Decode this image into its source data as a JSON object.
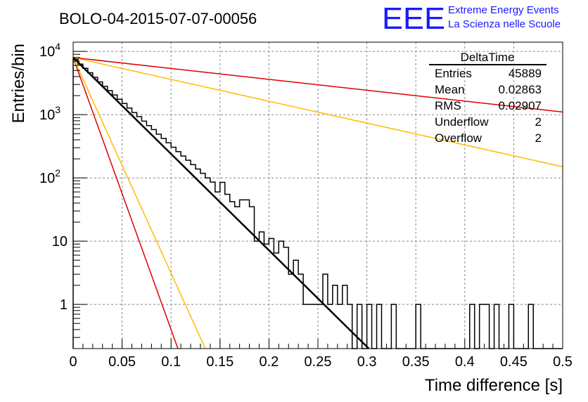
{
  "header": {
    "title": "BOLO-04-2015-07-07-00056",
    "logo_text": "EEE",
    "logo_line1": "Extreme Energy Events",
    "logo_line2": "La Scienza nelle Scuole",
    "logo_color": "#1a1aff"
  },
  "stats_box": {
    "title": "DeltaTime",
    "rows": [
      {
        "label": "Entries",
        "value": "45889"
      },
      {
        "label": "Mean",
        "value": "0.02863"
      },
      {
        "label": "RMS",
        "value": "0.02907"
      },
      {
        "label": "Underflow",
        "value": "2"
      },
      {
        "label": "Overflow",
        "value": "2"
      }
    ]
  },
  "chart_data": {
    "type": "line",
    "xlabel": "Time difference [s]",
    "ylabel": "Entries/bin",
    "xlim": [
      0,
      0.5
    ],
    "ylim": [
      0.2,
      14000
    ],
    "y_scale": "log",
    "grid": true,
    "x_ticks": [
      "0",
      "0.05",
      "0.1",
      "0.15",
      "0.2",
      "0.25",
      "0.3",
      "0.35",
      "0.4",
      "0.45",
      "0.5"
    ],
    "y_ticks": [
      {
        "value": 1,
        "label": "1"
      },
      {
        "value": 10,
        "label": "10"
      },
      {
        "value": 100,
        "label": "10",
        "exp": "2"
      },
      {
        "value": 1000,
        "label": "10",
        "exp": "3"
      },
      {
        "value": 10000,
        "label": "10",
        "exp": "4"
      }
    ],
    "histogram": {
      "bin_width": 0.005,
      "color": "#000000",
      "bins": [
        {
          "x": 0.0,
          "y": 7500
        },
        {
          "x": 0.005,
          "y": 6300
        },
        {
          "x": 0.01,
          "y": 5400
        },
        {
          "x": 0.015,
          "y": 4600
        },
        {
          "x": 0.02,
          "y": 3900
        },
        {
          "x": 0.025,
          "y": 3300
        },
        {
          "x": 0.03,
          "y": 2800
        },
        {
          "x": 0.035,
          "y": 2400
        },
        {
          "x": 0.04,
          "y": 2050
        },
        {
          "x": 0.045,
          "y": 1750
        },
        {
          "x": 0.05,
          "y": 1500
        },
        {
          "x": 0.055,
          "y": 1270
        },
        {
          "x": 0.06,
          "y": 1080
        },
        {
          "x": 0.065,
          "y": 930
        },
        {
          "x": 0.07,
          "y": 790
        },
        {
          "x": 0.075,
          "y": 670
        },
        {
          "x": 0.08,
          "y": 580
        },
        {
          "x": 0.085,
          "y": 490
        },
        {
          "x": 0.09,
          "y": 420
        },
        {
          "x": 0.095,
          "y": 360
        },
        {
          "x": 0.1,
          "y": 305
        },
        {
          "x": 0.105,
          "y": 260
        },
        {
          "x": 0.11,
          "y": 222
        },
        {
          "x": 0.115,
          "y": 190
        },
        {
          "x": 0.12,
          "y": 162
        },
        {
          "x": 0.125,
          "y": 138
        },
        {
          "x": 0.13,
          "y": 118
        },
        {
          "x": 0.135,
          "y": 100
        },
        {
          "x": 0.14,
          "y": 86
        },
        {
          "x": 0.145,
          "y": 60
        },
        {
          "x": 0.15,
          "y": 85
        },
        {
          "x": 0.155,
          "y": 55
        },
        {
          "x": 0.16,
          "y": 42
        },
        {
          "x": 0.165,
          "y": 35
        },
        {
          "x": 0.17,
          "y": 45
        },
        {
          "x": 0.175,
          "y": 45
        },
        {
          "x": 0.18,
          "y": 35
        },
        {
          "x": 0.185,
          "y": 10
        },
        {
          "x": 0.19,
          "y": 14
        },
        {
          "x": 0.195,
          "y": 9
        },
        {
          "x": 0.2,
          "y": 11
        },
        {
          "x": 0.205,
          "y": 6.5
        },
        {
          "x": 0.21,
          "y": 10
        },
        {
          "x": 0.215,
          "y": 8
        },
        {
          "x": 0.22,
          "y": 3
        },
        {
          "x": 0.225,
          "y": 5
        },
        {
          "x": 0.23,
          "y": 3
        },
        {
          "x": 0.235,
          "y": 1
        },
        {
          "x": 0.24,
          "y": 1
        },
        {
          "x": 0.245,
          "y": 1
        },
        {
          "x": 0.25,
          "y": 1
        },
        {
          "x": 0.255,
          "y": 3
        },
        {
          "x": 0.26,
          "y": 1
        },
        {
          "x": 0.265,
          "y": 2
        },
        {
          "x": 0.27,
          "y": 1
        },
        {
          "x": 0.275,
          "y": 2
        },
        {
          "x": 0.28,
          "y": 1
        },
        {
          "x": 0.285,
          "y": 0
        },
        {
          "x": 0.29,
          "y": 1
        },
        {
          "x": 0.295,
          "y": 0
        },
        {
          "x": 0.3,
          "y": 1
        },
        {
          "x": 0.305,
          "y": 0
        },
        {
          "x": 0.31,
          "y": 1
        },
        {
          "x": 0.315,
          "y": 0
        },
        {
          "x": 0.32,
          "y": 0
        },
        {
          "x": 0.325,
          "y": 1
        },
        {
          "x": 0.33,
          "y": 0
        },
        {
          "x": 0.335,
          "y": 0
        },
        {
          "x": 0.34,
          "y": 0
        },
        {
          "x": 0.345,
          "y": 0
        },
        {
          "x": 0.35,
          "y": 1
        },
        {
          "x": 0.355,
          "y": 0
        },
        {
          "x": 0.36,
          "y": 0
        },
        {
          "x": 0.365,
          "y": 0
        },
        {
          "x": 0.37,
          "y": 0
        },
        {
          "x": 0.375,
          "y": 0
        },
        {
          "x": 0.38,
          "y": 0
        },
        {
          "x": 0.385,
          "y": 0
        },
        {
          "x": 0.39,
          "y": 0
        },
        {
          "x": 0.395,
          "y": 0
        },
        {
          "x": 0.4,
          "y": 0
        },
        {
          "x": 0.405,
          "y": 1
        },
        {
          "x": 0.41,
          "y": 0
        },
        {
          "x": 0.415,
          "y": 1
        },
        {
          "x": 0.42,
          "y": 1
        },
        {
          "x": 0.425,
          "y": 0
        },
        {
          "x": 0.43,
          "y": 1
        },
        {
          "x": 0.435,
          "y": 0
        },
        {
          "x": 0.44,
          "y": 0
        },
        {
          "x": 0.445,
          "y": 1
        },
        {
          "x": 0.45,
          "y": 0
        },
        {
          "x": 0.455,
          "y": 0
        },
        {
          "x": 0.46,
          "y": 0
        },
        {
          "x": 0.465,
          "y": 1
        },
        {
          "x": 0.47,
          "y": 0
        },
        {
          "x": 0.475,
          "y": 0
        },
        {
          "x": 0.48,
          "y": 0
        },
        {
          "x": 0.485,
          "y": 0
        },
        {
          "x": 0.49,
          "y": 0
        },
        {
          "x": 0.495,
          "y": 0
        }
      ]
    },
    "series": [
      {
        "color": "#000000",
        "width": 2.5,
        "points": [
          [
            0.0,
            8000
          ],
          [
            0.302,
            0.2
          ]
        ]
      },
      {
        "color": "#dd0000",
        "width": 1.5,
        "points": [
          [
            0.0,
            8000
          ],
          [
            0.5,
            1100
          ]
        ]
      },
      {
        "color": "#ffbb00",
        "width": 1.5,
        "points": [
          [
            0.0,
            8000
          ],
          [
            0.5,
            150
          ]
        ]
      },
      {
        "color": "#dd0000",
        "width": 1.5,
        "points": [
          [
            0.0,
            8000
          ],
          [
            0.107,
            0.2
          ]
        ]
      },
      {
        "color": "#ffbb00",
        "width": 1.5,
        "points": [
          [
            0.0,
            8000
          ],
          [
            0.135,
            0.2
          ]
        ]
      }
    ]
  }
}
